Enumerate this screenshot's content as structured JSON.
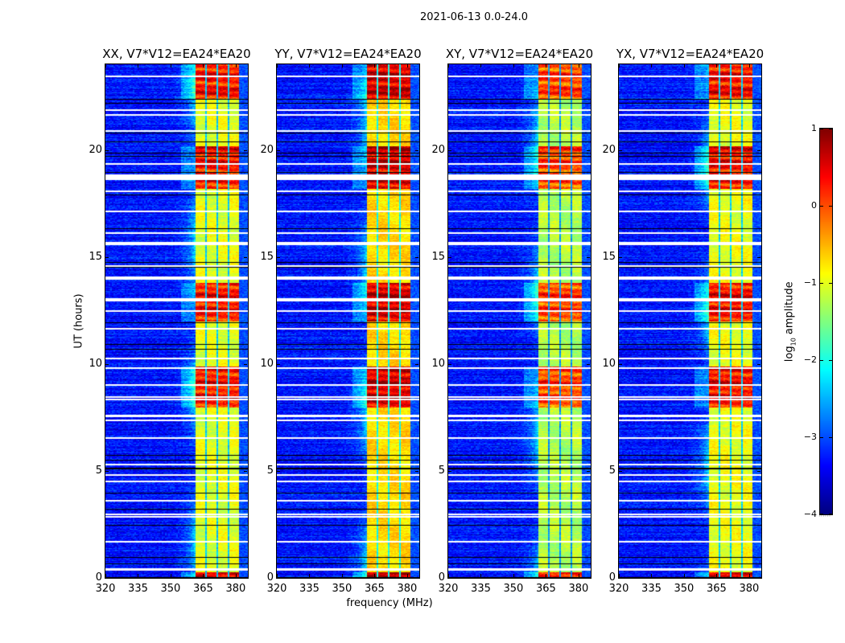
{
  "chart_data": {
    "type": "heatmap",
    "title": "2021-06-13 0.0-24.0",
    "panels": [
      {
        "title": "XX, V7*V12=EA24*EA20",
        "pol": "XX",
        "level_offset": 0.0
      },
      {
        "title": "YY, V7*V12=EA24*EA20",
        "pol": "YY",
        "level_offset": 0.3
      },
      {
        "title": "XY, V7*V12=EA24*EA20",
        "pol": "XY",
        "level_offset": -0.25
      },
      {
        "title": "YX, V7*V12=EA24*EA20",
        "pol": "YX",
        "level_offset": 0.05
      }
    ],
    "xlabel": "frequency (MHz)",
    "ylabel": "UT (hours)",
    "xlim": [
      320,
      385.6
    ],
    "ylim": [
      0,
      24
    ],
    "xticks": [
      320,
      335,
      350,
      365,
      380
    ],
    "xtick_labels": [
      "320",
      "335",
      "350",
      "365",
      "380"
    ],
    "yticks": [
      0,
      5,
      10,
      15,
      20
    ],
    "ytick_labels": [
      "0",
      "5",
      "10",
      "15",
      "20"
    ],
    "colorbar": {
      "label_main": "log",
      "label_sub": "10",
      "label_rest": " amplitude",
      "range": [
        -4,
        1
      ],
      "ticks": [
        1,
        0,
        -1,
        -2,
        -3,
        -4
      ],
      "tick_labels": [
        "1",
        "0",
        "−1",
        "−2",
        "−3",
        "−4"
      ],
      "colormap": "jet"
    },
    "band": {
      "start_mhz": 361.5,
      "end_mhz": 381.5,
      "channel_gaps_mhz": [
        366.2,
        371.5,
        376.8
      ]
    },
    "levels": {
      "background": -3.3,
      "band": -1.0,
      "hot": 0.3
    },
    "hot_intervals_hours": [
      [
        0.05,
        0.3
      ],
      [
        8.0,
        9.9
      ],
      [
        12.0,
        13.8
      ],
      [
        18.2,
        20.2
      ],
      [
        22.4,
        24.0
      ]
    ],
    "flagged_times_hours": [
      23.47,
      21.9,
      21.67,
      20.92,
      19.38,
      18.1,
      17.16,
      16.15,
      15.7,
      15.62,
      14.6,
      12.5,
      11.68,
      10.29,
      9.84,
      9.05,
      8.49,
      8.37,
      7.4,
      6.57,
      5.33,
      4.84,
      4.54,
      3.64,
      3.0,
      2.9,
      1.73
    ],
    "flagged_ranges_hours": [
      [
        18.6,
        18.85
      ],
      [
        13.95,
        14.1
      ],
      [
        12.93,
        13.07
      ],
      [
        7.55,
        7.64
      ],
      [
        0.36,
        0.46
      ]
    ],
    "dropout_times_hours": [
      22.38,
      22.2,
      20.8,
      20.4,
      19.86,
      19.71,
      18.96,
      17.9,
      16.33,
      14.76,
      14.53,
      11.94,
      10.93,
      10.7,
      5.75,
      5.52,
      5.14,
      5.1,
      3.98,
      3.23,
      2.48,
      0.98,
      0.68,
      0.04
    ]
  },
  "colors": {
    "flag": "#ffffff",
    "dropout": "#000000",
    "frame": "#000000"
  }
}
